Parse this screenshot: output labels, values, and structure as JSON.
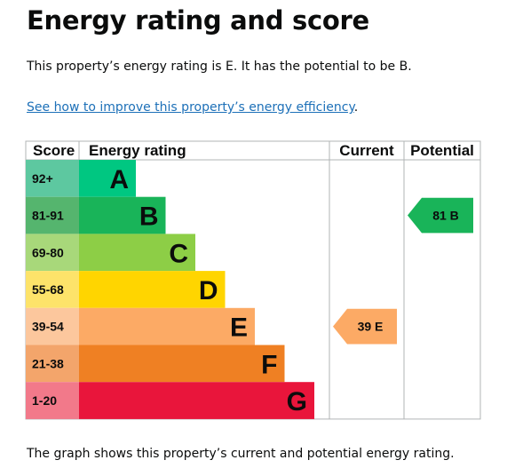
{
  "title": "Energy rating and score",
  "intro": "This property’s energy rating is E. It has the potential to be B.",
  "link": {
    "text": "See how to improve this property’s energy efficiency",
    "suffix": "."
  },
  "footer": "The graph shows this property’s current and potential energy rating.",
  "chart_data": {
    "type": "table",
    "headers": {
      "score": "Score",
      "rating": "Energy rating",
      "current": "Current",
      "potential": "Potential"
    },
    "bands": [
      {
        "score": "92+",
        "letter": "A",
        "color": "#5dc8a0",
        "bar_color": "#00c781",
        "letter_color": "#0b0c0c"
      },
      {
        "score": "81-91",
        "letter": "B",
        "color": "#55b56e",
        "bar_color": "#19b459",
        "letter_color": "#0b0c0c"
      },
      {
        "score": "69-80",
        "letter": "C",
        "color": "#a8d87a",
        "bar_color": "#8dce46",
        "letter_color": "#0b0c0c"
      },
      {
        "score": "55-68",
        "letter": "D",
        "color": "#fde36a",
        "bar_color": "#ffd500",
        "letter_color": "#0b0c0c"
      },
      {
        "score": "39-54",
        "letter": "E",
        "color": "#fcc79d",
        "bar_color": "#fcaa65",
        "letter_color": "#0b0c0c"
      },
      {
        "score": "21-38",
        "letter": "F",
        "color": "#f3a56b",
        "bar_color": "#ef8023",
        "letter_color": "#0b0c0c"
      },
      {
        "score": "1-20",
        "letter": "G",
        "color": "#f2798a",
        "bar_color": "#e9153b",
        "letter_color": "#0b0c0c"
      }
    ],
    "current": {
      "value": 39,
      "letter": "E",
      "label": "39 E",
      "color": "#fcaa65",
      "text_color": "#0b0c0c"
    },
    "potential": {
      "value": 81,
      "letter": "B",
      "label": "81 B",
      "color": "#19b459",
      "text_color": "#0b0c0c"
    }
  }
}
